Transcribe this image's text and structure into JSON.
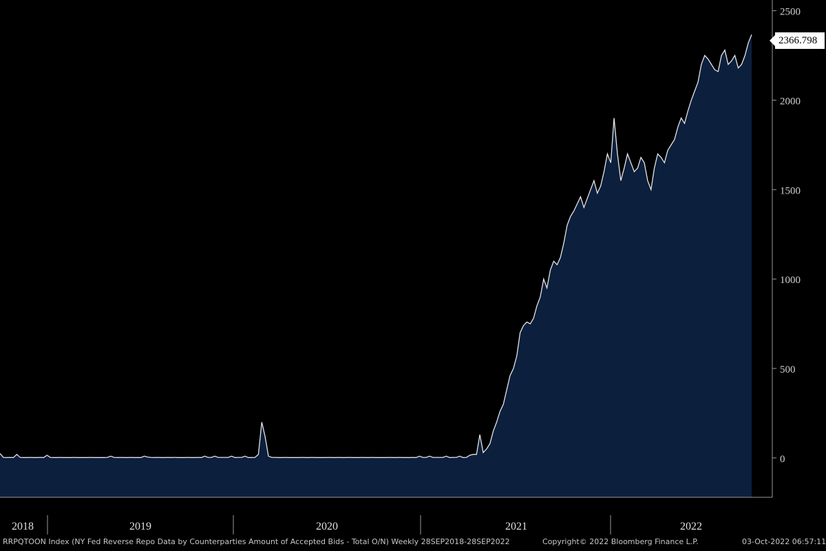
{
  "chart_data": {
    "type": "area",
    "y_ticks": [
      "2500",
      "2000",
      "1500",
      "1000",
      "500",
      "0"
    ],
    "y_tick_values": [
      2500,
      2000,
      1500,
      1000,
      500,
      0
    ],
    "ylim": [
      -220,
      2560
    ],
    "x_year_labels": [
      "2018",
      "2019",
      "2020",
      "2021",
      "2022"
    ],
    "last_value_label": "2366.798",
    "series": [
      {
        "values": [
          25,
          3,
          2,
          3,
          2,
          20,
          3,
          2,
          2,
          3,
          2,
          2,
          3,
          2,
          15,
          3,
          2,
          2,
          3,
          2,
          2,
          2,
          3,
          2,
          2,
          2,
          2,
          3,
          2,
          2,
          2,
          2,
          3,
          10,
          3,
          2,
          3,
          2,
          2,
          3,
          2,
          2,
          2,
          10,
          5,
          3,
          2,
          3,
          2,
          2,
          3,
          2,
          3,
          2,
          2,
          2,
          3,
          2,
          2,
          3,
          2,
          10,
          3,
          3,
          10,
          3,
          3,
          3,
          3,
          10,
          2,
          3,
          3,
          10,
          2,
          2,
          3,
          20,
          200,
          120,
          10,
          3,
          3,
          2,
          2,
          3,
          2,
          2,
          2,
          2,
          3,
          2,
          2,
          3,
          2,
          2,
          2,
          2,
          3,
          2,
          2,
          3,
          2,
          2,
          3,
          2,
          2,
          2,
          3,
          2,
          2,
          3,
          2,
          2,
          2,
          2,
          3,
          2,
          2,
          3,
          2,
          2,
          2,
          3,
          2,
          10,
          3,
          3,
          10,
          3,
          3,
          3,
          3,
          10,
          2,
          3,
          3,
          10,
          2,
          3,
          15,
          20,
          20,
          130,
          30,
          50,
          80,
          150,
          200,
          260,
          300,
          380,
          460,
          500,
          570,
          700,
          740,
          760,
          750,
          780,
          850,
          900,
          1000,
          950,
          1050,
          1100,
          1080,
          1120,
          1200,
          1300,
          1350,
          1380,
          1420,
          1460,
          1400,
          1450,
          1500,
          1550,
          1480,
          1520,
          1600,
          1700,
          1650,
          1900,
          1700,
          1550,
          1620,
          1700,
          1650,
          1600,
          1620,
          1680,
          1650,
          1550,
          1500,
          1620,
          1700,
          1680,
          1650,
          1720,
          1750,
          1780,
          1850,
          1900,
          1870,
          1940,
          2000,
          2050,
          2100,
          2200,
          2250,
          2230,
          2200,
          2170,
          2160,
          2250,
          2280,
          2200,
          2220,
          2250,
          2180,
          2200,
          2250,
          2320,
          2366.798
        ]
      }
    ]
  },
  "footer": {
    "source": "RRPQTOON Index (NY Fed Reverse Repo Data by Counterparties Amount of Accepted Bids - Total O/N)  Weekly 28SEP2018-28SEP2022",
    "copyright": "Copyright© 2022 Bloomberg Finance L.P.",
    "timestamp": "03-Oct-2022 06:57:11"
  },
  "colors": {
    "background": "#000000",
    "area_fill": "#0c1f3d",
    "line": "#e6e6e6",
    "axis": "#9a9a9a"
  }
}
